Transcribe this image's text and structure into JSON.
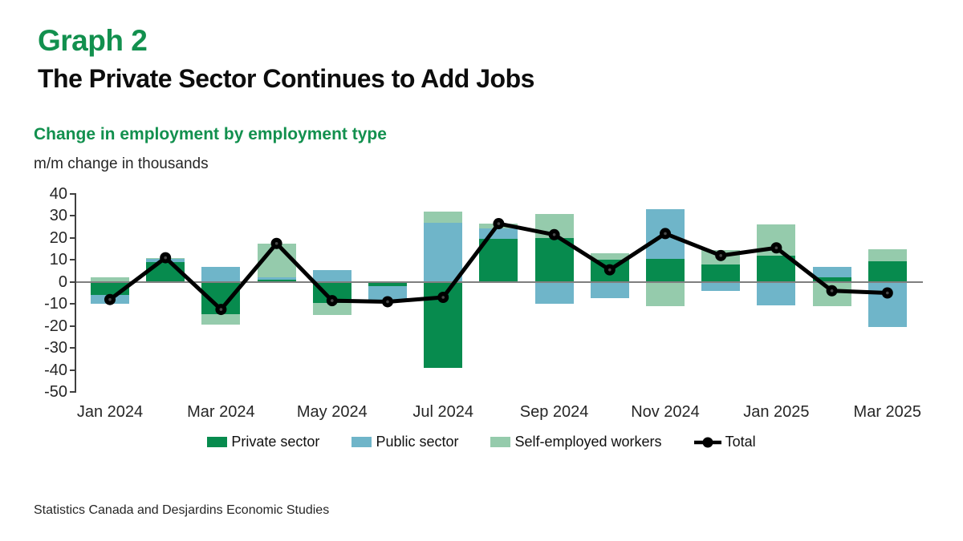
{
  "header": {
    "graph_label": "Graph 2",
    "title": "The Private Sector Continues to Add Jobs",
    "subtitle": "Change in employment by employment type",
    "axis_unit": "m/m change in thousands"
  },
  "chart_data": {
    "type": "bar",
    "subtype": "stacked-bars-with-total-line",
    "title": "Change in employment by employment type",
    "ylabel": "m/m change in thousands",
    "ylim": [
      -50,
      40
    ],
    "y_ticks": [
      40,
      30,
      20,
      10,
      0,
      -10,
      -20,
      -30,
      -40,
      -50
    ],
    "grid": "zero-line-only",
    "legend_position": "bottom",
    "categories": [
      "Jan 2024",
      "Feb 2024",
      "Mar 2024",
      "Apr 2024",
      "May 2024",
      "Jun 2024",
      "Jul 2024",
      "Aug 2024",
      "Sep 2024",
      "Oct 2024",
      "Nov 2024",
      "Dec 2024",
      "Jan 2025",
      "Feb 2025",
      "Mar 2025"
    ],
    "x_tick_labels": [
      "Jan 2024",
      "Mar 2024",
      "May 2024",
      "Jul 2024",
      "Sep 2024",
      "Nov 2024",
      "Jan 2025",
      "Mar 2025"
    ],
    "series": [
      {
        "name": "Private sector",
        "color": "#078b4e",
        "values": [
          -6,
          9,
          -14.5,
          1,
          -9.5,
          -2,
          -39,
          19.5,
          20,
          10,
          10.5,
          8,
          12,
          2,
          9.5
        ]
      },
      {
        "name": "Public sector",
        "color": "#6fb5c9",
        "values": [
          -4,
          1.5,
          7,
          1,
          5.5,
          -6,
          27,
          5,
          -10,
          -7.5,
          22.5,
          -4,
          -10.5,
          5,
          -20.5
        ]
      },
      {
        "name": "Self-employed workers",
        "color": "#95cbac",
        "values": [
          2,
          0.5,
          -5,
          15.5,
          -5.5,
          -0.5,
          5,
          2,
          11,
          3,
          -11,
          6.5,
          14,
          -11,
          5.5
        ]
      }
    ],
    "line_series": {
      "name": "Total",
      "color": "#000000",
      "marker": "filled-circle",
      "values": [
        -8,
        11,
        -12.5,
        17.5,
        -8.5,
        -9,
        -7,
        26.5,
        21.5,
        5.5,
        22,
        12,
        15.5,
        -4,
        -5
      ]
    }
  },
  "source": "Statistics Canada and Desjardins Economic Studies",
  "colors": {
    "heading_green": "#12904e",
    "private_green": "#078b4e",
    "public_blue": "#6fb5c9",
    "self_employed_green": "#95cbac",
    "total_black": "#000000",
    "zero_line_gray": "#7f7f7f",
    "axis_gray": "#404040"
  }
}
